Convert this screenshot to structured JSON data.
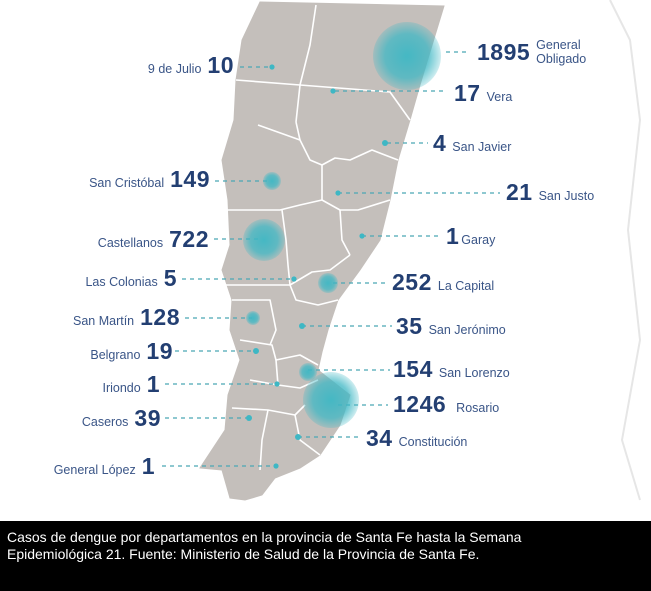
{
  "caption": "Casos de dengue por departamentos en la provincia de Santa Fe hasta la Semana Epidemiológica 21. Fuente: Ministerio de Salud de la Provincia de Santa Fe.",
  "colors": {
    "map_fill": "#c4bfbb",
    "map_border": "#ffffff",
    "bubble": "#3eb7c4",
    "text": "#233f72",
    "leader": "#4aa8b5",
    "caption_bg": "#000000"
  },
  "departments": [
    {
      "name": "9 de Julio",
      "cases": 10
    },
    {
      "name": "General Obligado",
      "name_lines": [
        "General",
        "Obligado"
      ],
      "cases": 1895
    },
    {
      "name": "Vera",
      "cases": 17
    },
    {
      "name": "San Javier",
      "cases": 4
    },
    {
      "name": "San Cristóbal",
      "cases": 149
    },
    {
      "name": "San Justo",
      "cases": 21
    },
    {
      "name": "Castellanos",
      "cases": 722
    },
    {
      "name": "Garay",
      "cases": 1
    },
    {
      "name": "Las Colonias",
      "cases": 5
    },
    {
      "name": "La Capital",
      "cases": 252
    },
    {
      "name": "San Martín",
      "cases": 128
    },
    {
      "name": "San Jerónimo",
      "cases": 35
    },
    {
      "name": "Belgrano",
      "cases": 19
    },
    {
      "name": "San Lorenzo",
      "cases": 154
    },
    {
      "name": "Iriondo",
      "cases": 1
    },
    {
      "name": "Rosario",
      "cases": 1246
    },
    {
      "name": "Caseros",
      "cases": 39
    },
    {
      "name": "Constitución",
      "cases": 34
    },
    {
      "name": "General López",
      "cases": 1
    }
  ]
}
